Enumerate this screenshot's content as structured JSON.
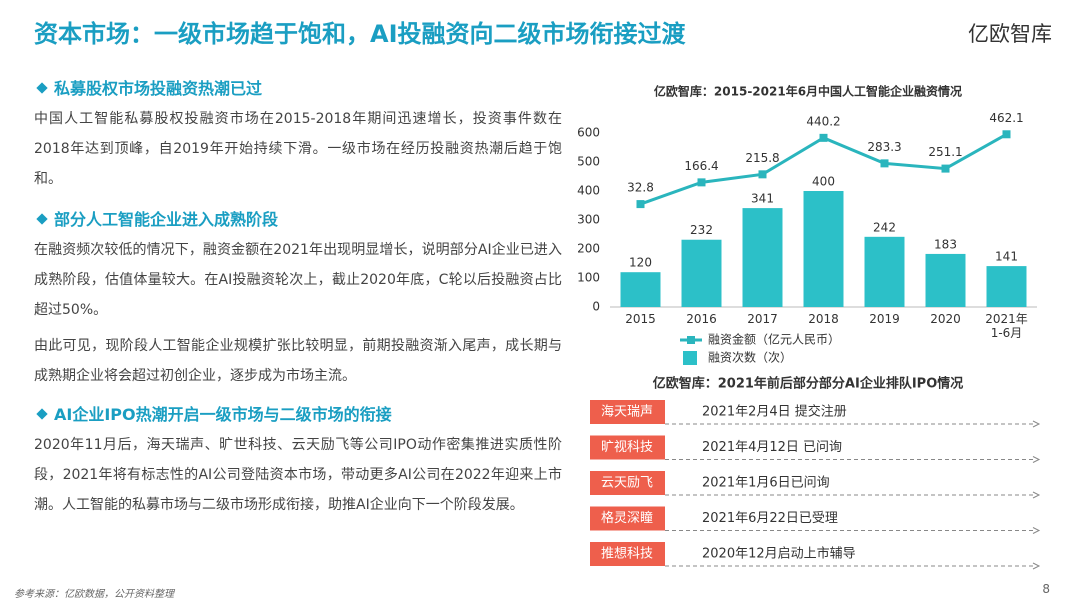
{
  "header": {
    "title": "资本市场：一级市场趋于饱和，AI投融资向二级市场衔接过渡",
    "logo": "亿欧智库"
  },
  "sections": [
    {
      "heading": "私募股权市场投融资热潮已过",
      "paragraphs": [
        "中国人工智能私募股权投融资市场在2015-2018年期间迅速增长，投资事件数在2018年达到顶峰，自2019年开始持续下滑。一级市场在经历投融资热潮后趋于饱和。"
      ]
    },
    {
      "heading": "部分人工智能企业进入成熟阶段",
      "paragraphs": [
        "在融资频次较低的情况下，融资金额在2021年出现明显增长，说明部分AI企业已进入成熟阶段，估值体量较大。在AI投融资轮次上，截止2020年底，C轮以后投融资占比超过50%。",
        "由此可见，现阶段人工智能企业规模扩张比较明显，前期投融资渐入尾声，成长期与成熟期企业将会超过初创企业，逐步成为市场主流。"
      ]
    },
    {
      "heading": "AI企业IPO热潮开启一级市场与二级市场的衔接",
      "paragraphs": [
        "2020年11月后，海天瑞声、旷世科技、云天励飞等公司IPO动作密集推进实质性阶段，2021年将有标志性的AI公司登陆资本市场，带动更多AI公司在2022年迎来上市潮。人工智能的私募市场与二级市场形成衔接，助推AI企业向下一个阶段发展。"
      ]
    }
  ],
  "chart_data": {
    "type": "bar-line",
    "title": "亿欧智库：2015-2021年6月中国人工智能企业融资情况",
    "categories": [
      "2015",
      "2016",
      "2017",
      "2018",
      "2019",
      "2020",
      "2021年\n1-6月"
    ],
    "series": [
      {
        "name": "融资金额（亿元人民币）",
        "type": "line",
        "axis": "y2",
        "color": "#2ab5bd",
        "values": [
          32.8,
          166.4,
          215.8,
          440.2,
          283.3,
          251.1,
          462.1
        ]
      },
      {
        "name": "融资次数（次）",
        "type": "bar",
        "color": "#2cc0c8",
        "values": [
          120,
          232,
          341,
          400,
          242,
          183,
          141
        ]
      }
    ],
    "ylim": [
      0,
      600
    ],
    "yticks": [
      0,
      100,
      200,
      300,
      400,
      500,
      600
    ],
    "y2lim": [
      -600,
      470
    ]
  },
  "ipo": {
    "title": "亿欧智库：2021年前后部分部分AI企业排队IPO情况",
    "items": [
      {
        "company": "海天瑞声",
        "status": "2021年2月4日 提交注册"
      },
      {
        "company": "旷视科技",
        "status": "2021年4月12日 已问询"
      },
      {
        "company": "云天励飞",
        "status": "2021年1月6日已问询"
      },
      {
        "company": "格灵深瞳",
        "status": "2021年6月22日已受理"
      },
      {
        "company": "推想科技",
        "status": "2020年12月启动上市辅导"
      }
    ]
  },
  "footer": {
    "source": "参考来源：亿欧数据，公开资料整理",
    "page": "8"
  }
}
